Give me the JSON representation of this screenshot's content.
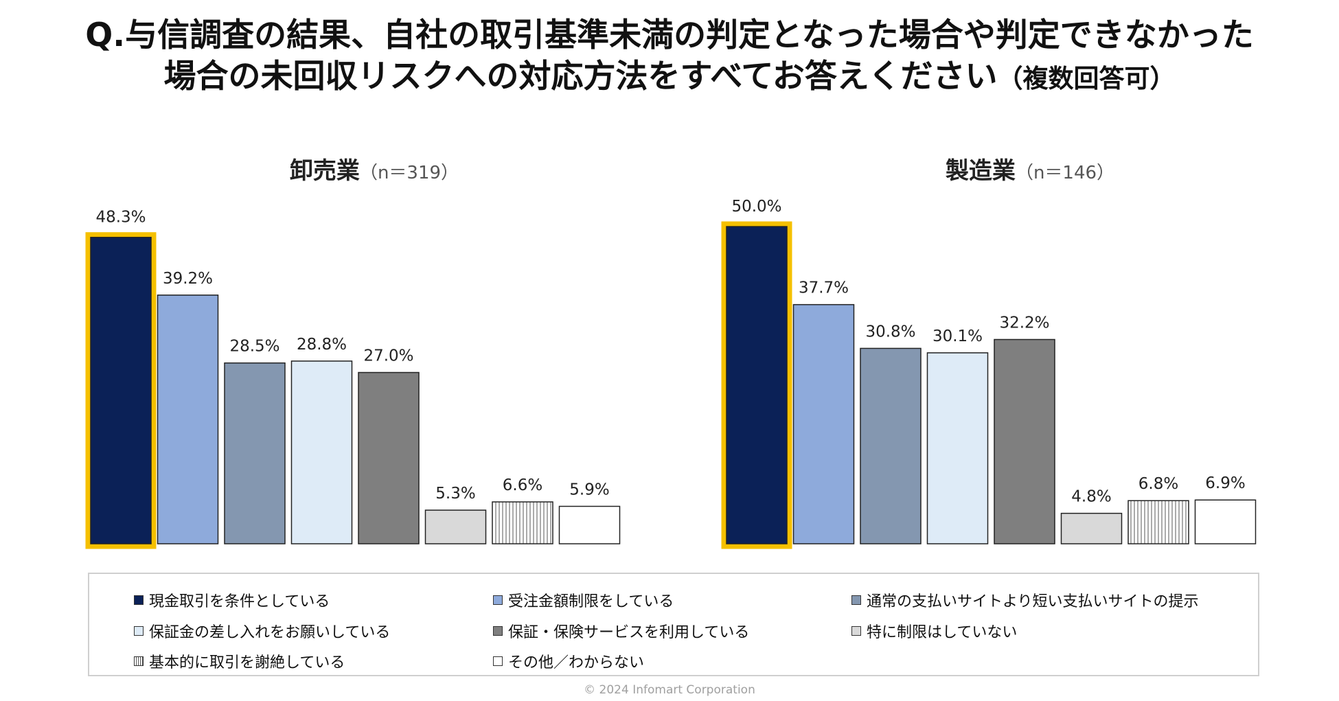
{
  "title": {
    "line1": "Q.与信調査の結果、自社の取引基準未満の判定となった場合や判定できなかった",
    "line2": "場合の未回収リスクへの対応方法をすべてお答えください",
    "line2_suffix": "（複数回答可）"
  },
  "chart_data": [
    {
      "type": "bar",
      "title": "卸売業",
      "subtitle": "（n＝319）",
      "categories": [
        "現金取引を条件としている",
        "受注金額制限をしている",
        "通常の支払いサイトより短い支払いサイトの提示",
        "保証金の差し入れをお願いしている",
        "保証・保険サービスを利用している",
        "特に制限はしていない",
        "基本的に取引を謝絶している",
        "その他／わからない"
      ],
      "values": [
        48.3,
        39.2,
        28.5,
        28.8,
        27.0,
        5.3,
        6.6,
        5.9
      ],
      "value_labels": [
        "48.3%",
        "39.2%",
        "28.5%",
        "28.8%",
        "27.0%",
        "5.3%",
        "6.6%",
        "5.9%"
      ],
      "highlight_index": 0,
      "ylim": [
        0,
        50
      ]
    },
    {
      "type": "bar",
      "title": "製造業",
      "subtitle": "（n＝146）",
      "categories": [
        "現金取引を条件としている",
        "受注金額制限をしている",
        "通常の支払いサイトより短い支払いサイトの提示",
        "保証金の差し入れをお願いしている",
        "保証・保険サービスを利用している",
        "特に制限はしていない",
        "基本的に取引を謝絶している",
        "その他／わからない"
      ],
      "values": [
        50.0,
        37.7,
        30.8,
        30.1,
        32.2,
        4.8,
        6.8,
        6.9
      ],
      "value_labels": [
        "50.0%",
        "37.7%",
        "30.8%",
        "30.1%",
        "32.2%",
        "4.8%",
        "6.8%",
        "6.9%"
      ],
      "highlight_index": 0,
      "ylim": [
        0,
        50
      ]
    }
  ],
  "series_styles": [
    {
      "fill": "#0b2157",
      "pattern": "solid"
    },
    {
      "fill": "#8eaadb",
      "pattern": "solid"
    },
    {
      "fill": "#8497b0",
      "pattern": "solid"
    },
    {
      "fill": "#deebf7",
      "pattern": "solid"
    },
    {
      "fill": "#7f7f7f",
      "pattern": "solid"
    },
    {
      "fill": "#d9d9d9",
      "pattern": "solid"
    },
    {
      "fill": "#ffffff",
      "pattern": "vertical-lines"
    },
    {
      "fill": "#ffffff",
      "pattern": "solid"
    }
  ],
  "highlight_color": "#f5c000",
  "legend": [
    "現金取引を条件としている",
    "受注金額制限をしている",
    "通常の支払いサイトより短い支払いサイトの提示",
    "保証金の差し入れをお願いしている",
    "保証・保険サービスを利用している",
    "特に制限はしていない",
    "基本的に取引を謝絶している",
    "その他／わからない"
  ],
  "copyright": "© 2024 Infomart Corporation"
}
